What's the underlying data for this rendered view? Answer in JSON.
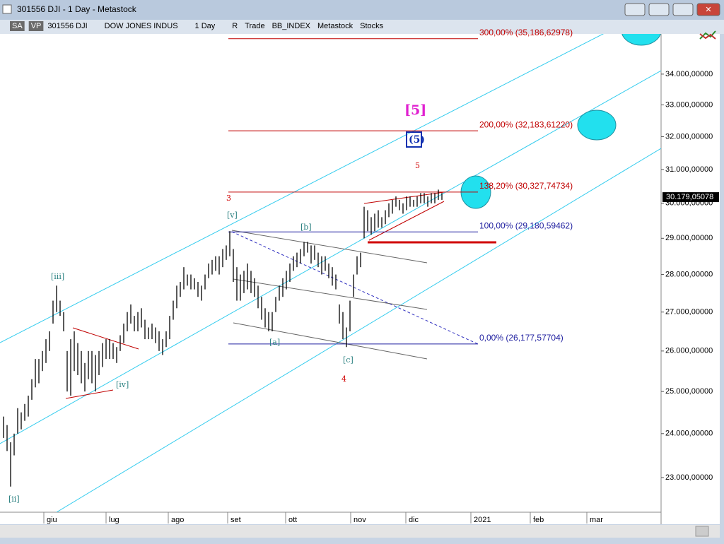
{
  "window": {
    "title": "301556 DJI - 1 Day - Metastock",
    "toolbar": [
      "SA",
      "VP",
      "301556 DJI",
      "DOW JONES INDUS",
      "1 Day",
      "R",
      "Trade",
      "BB_INDEX",
      "Metastock",
      "Stocks"
    ]
  },
  "chart_data": {
    "type": "range_bar",
    "color": "#000000",
    "log_scale": true,
    "low": [
      23900,
      23600,
      22800,
      23500,
      24000,
      24100,
      24300,
      24400,
      24800,
      25100,
      25200,
      25500,
      25700,
      26000,
      26700,
      27000,
      26900,
      26500,
      25000,
      24900,
      25500,
      25400,
      25200,
      25000,
      25300,
      25200,
      25000,
      25400,
      25600,
      25800,
      25800,
      25800,
      25700,
      26000,
      26200,
      26500,
      26700,
      26500,
      26500,
      26600,
      26300,
      26300,
      26300,
      26200,
      26000,
      25900,
      26100,
      26300,
      26800,
      27100,
      27400,
      27600,
      27700,
      27600,
      27600,
      27400,
      27300,
      27600,
      27900,
      28000,
      28100,
      28000,
      28200,
      28400,
      28500,
      27800,
      27300,
      27300,
      27500,
      27600,
      27500,
      27400,
      27100,
      26800,
      26600,
      26500,
      26500,
      27000,
      27300,
      27400,
      27600,
      27800,
      28100,
      28200,
      28300,
      28500,
      28600,
      28300,
      28400,
      28200,
      28000,
      28100,
      27900,
      27700,
      27600,
      26700,
      26300,
      26100,
      26500,
      27400,
      28000,
      28200,
      29000,
      29200,
      29100,
      29200,
      29300,
      29300,
      29400,
      29600,
      29700,
      29900,
      29800,
      29700,
      29800,
      29900,
      29900,
      29900,
      30000,
      30000,
      29900,
      30000,
      30000,
      30100,
      30100
    ],
    "high": [
      24400,
      24200,
      23800,
      24000,
      24600,
      24500,
      24700,
      24900,
      25300,
      25800,
      25800,
      26000,
      26300,
      26500,
      27300,
      27700,
      27300,
      27000,
      26000,
      26300,
      26500,
      26200,
      26000,
      25700,
      26000,
      26000,
      25900,
      26000,
      26200,
      26300,
      26300,
      26200,
      26100,
      26400,
      26700,
      27000,
      27200,
      26900,
      27000,
      27100,
      26800,
      26600,
      26700,
      26600,
      26500,
      26300,
      26500,
      26900,
      27300,
      27700,
      27800,
      28200,
      28000,
      28000,
      27900,
      27800,
      27700,
      28000,
      28300,
      28400,
      28500,
      28500,
      28700,
      28800,
      29200,
      28700,
      28200,
      28000,
      28100,
      28300,
      28100,
      27900,
      27700,
      27400,
      27100,
      27000,
      27000,
      27400,
      27700,
      27900,
      28100,
      28300,
      28500,
      28600,
      28700,
      28900,
      28900,
      28800,
      28800,
      28600,
      28500,
      28500,
      28300,
      28200,
      28000,
      27200,
      27000,
      26600,
      27300,
      28000,
      28500,
      28600,
      29900,
      29800,
      29600,
      29700,
      29800,
      29600,
      29800,
      30000,
      30100,
      30200,
      30100,
      30000,
      30200,
      30200,
      30100,
      30200,
      30300,
      30300,
      30200,
      30300,
      30300,
      30400,
      30300
    ],
    "xlim": [
      0,
      186
    ],
    "xticks": [
      {
        "value": 11.4,
        "label": "giu"
      },
      {
        "value": 29,
        "label": "lug"
      },
      {
        "value": 46.6,
        "label": "ago"
      },
      {
        "value": 63.4,
        "label": "set"
      },
      {
        "value": 79.8,
        "label": "ott"
      },
      {
        "value": 98.2,
        "label": "nov"
      },
      {
        "value": 113.8,
        "label": "dic"
      },
      {
        "value": 132.2,
        "label": "2021"
      },
      {
        "value": 149,
        "label": "feb"
      },
      {
        "value": 165,
        "label": "mar"
      }
    ],
    "ylim": [
      22241,
      35350
    ],
    "yticks": [
      {
        "value": 23000,
        "label": "23.000,00000"
      },
      {
        "value": 24000,
        "label": "24.000,00000"
      },
      {
        "value": 25000,
        "label": "25.000,00000"
      },
      {
        "value": 26000,
        "label": "26.000,00000"
      },
      {
        "value": 27000,
        "label": "27.000,00000"
      },
      {
        "value": 28000,
        "label": "28.000,00000"
      },
      {
        "value": 29000,
        "label": "29.000,00000"
      },
      {
        "value": 30000,
        "label": "30.000,00000"
      },
      {
        "value": 31000,
        "label": "31.000,00000"
      },
      {
        "value": 32000,
        "label": "32.000,00000"
      },
      {
        "value": 33000,
        "label": "33.000,00000"
      },
      {
        "value": 34000,
        "label": "34.000,00000"
      }
    ],
    "last": {
      "value": 30179.05078,
      "label": "30.179,05078"
    },
    "levels": [
      {
        "value": 35186.62978,
        "label": "300,00% (35,186,62978)",
        "color": "#c00000"
      },
      {
        "value": 32183.6122,
        "label": "200,00% (32,183,61220)",
        "color": "#c00000"
      },
      {
        "value": 30327.74734,
        "label": "138,20% (30,327,74734)",
        "color": "#c00000"
      },
      {
        "value": 29180.59462,
        "label": "100,00% (29,180,59462)",
        "color": "#2020a0"
      },
      {
        "value": 26177.57704,
        "label": "0,00% (26,177,57704)",
        "color": "#2020a0"
      }
    ],
    "annotations": [
      {
        "text": "[ii]",
        "color": "#2a8080"
      },
      {
        "text": "[iii]",
        "color": "#2a8080"
      },
      {
        "text": "[iv]",
        "color": "#2a8080"
      },
      {
        "text": "[v]",
        "color": "#2a8080"
      },
      {
        "text": "3",
        "color": "#d00000"
      },
      {
        "text": "[a]",
        "color": "#2a8080"
      },
      {
        "text": "[b]",
        "color": "#2a8080"
      },
      {
        "text": "[c]",
        "color": "#2a8080"
      },
      {
        "text": "4",
        "color": "#d00000"
      },
      {
        "text": "5",
        "color": "#d00000"
      },
      {
        "text": "[5]",
        "color": "#e020d0"
      },
      {
        "text": "(5)",
        "color": "#1030b0"
      }
    ]
  }
}
